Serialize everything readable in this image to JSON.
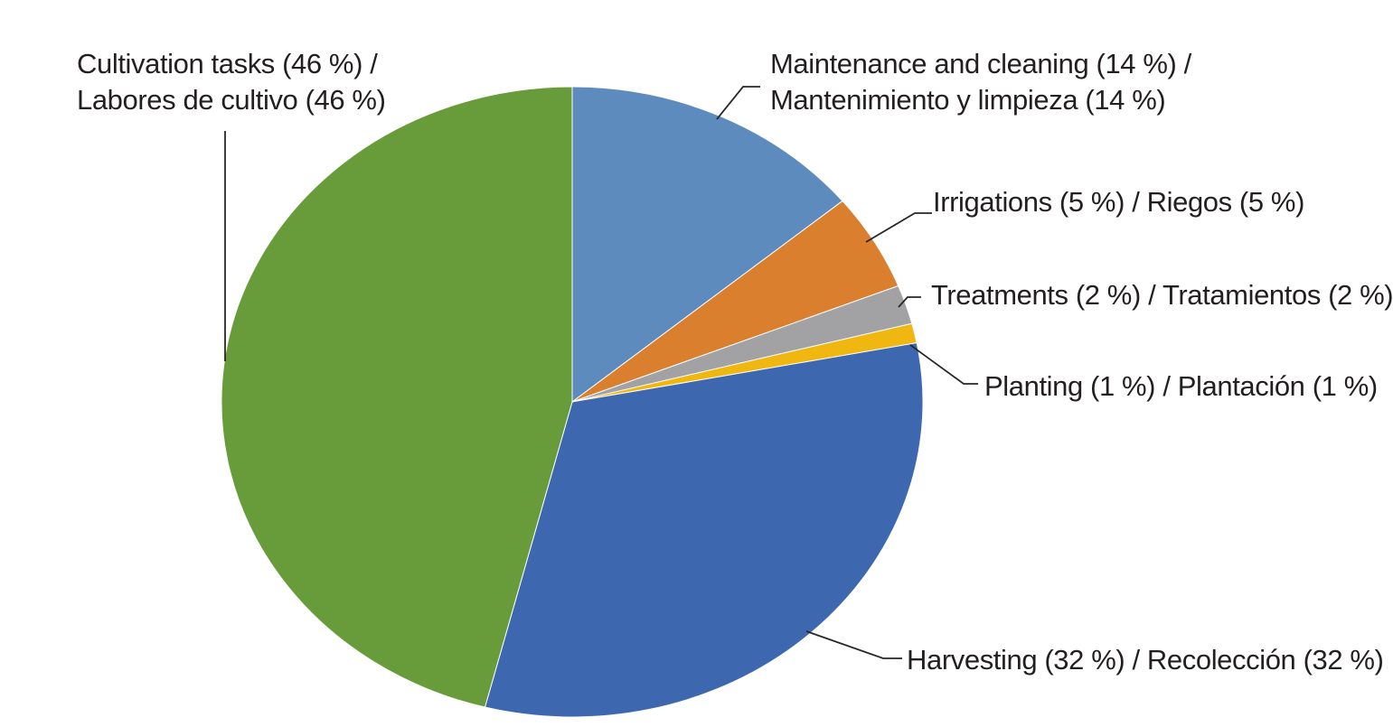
{
  "figure": {
    "background": "#ffffff",
    "text_color": "#231f20",
    "leader_line_color": "#2a2627"
  },
  "chart_data": {
    "type": "pie",
    "title": "",
    "units": "%",
    "start_angle_deg": 0,
    "direction": "clockwise",
    "legend": "none (leader-line labels)",
    "slices": [
      {
        "name": "maintenance-and-cleaning",
        "label_en": "Maintenance and cleaning",
        "label_es": "Mantenimiento y limpieza",
        "value_pct": 14,
        "color": "#5d8bbd",
        "label_line1": "Maintenance and cleaning (14 %) /",
        "label_line2": "Mantenimiento y limpieza (14 %)"
      },
      {
        "name": "irrigations",
        "label_en": "Irrigations",
        "label_es": "Riegos",
        "value_pct": 5,
        "color": "#d97f2d",
        "label_line1": "Irrigations (5 %) / Riegos (5 %)",
        "label_line2": ""
      },
      {
        "name": "treatments",
        "label_en": "Treatments",
        "label_es": "Tratamientos",
        "value_pct": 2,
        "color": "#a2a2a4",
        "label_line1": "Treatments (2 %) / Tratamientos (2 %)",
        "label_line2": ""
      },
      {
        "name": "planting",
        "label_en": "Planting",
        "label_es": "Plantación",
        "value_pct": 1,
        "color": "#efb710",
        "label_line1": "Planting (1 %) / Plantación (1 %)",
        "label_line2": ""
      },
      {
        "name": "harvesting",
        "label_en": "Harvesting",
        "label_es": "Recolección",
        "value_pct": 32,
        "color": "#3d68af",
        "label_line1": "Harvesting (32 %) / Recolección (32 %)",
        "label_line2": ""
      },
      {
        "name": "cultivation-tasks",
        "label_en": "Cultivation tasks",
        "label_es": "Labores de cultivo",
        "value_pct": 46,
        "color": "#689c3a",
        "label_line1": "Cultivation tasks (46 %) /",
        "label_line2": "Labores de cultivo (46 %)"
      }
    ]
  }
}
